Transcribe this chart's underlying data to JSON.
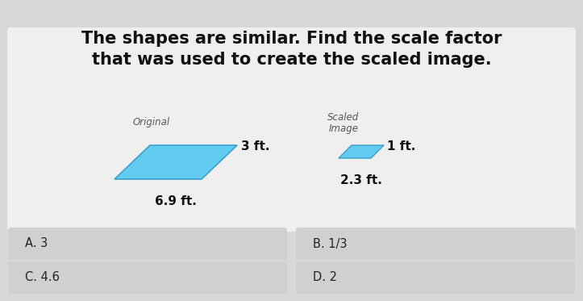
{
  "title_line1": "The shapes are similar. Find the scale factor",
  "title_line2": "that was used to create the scaled image.",
  "bg_main": "#d8d8d8",
  "bg_card": "#efefef",
  "bg_button": "#d0d0d0",
  "shape_color": "#62cbf0",
  "shape_edge_color": "#3a9fcc",
  "original_label": "Original",
  "original_side": "3 ft.",
  "original_bottom": "6.9 ft.",
  "scaled_label_line1": "Scaled",
  "scaled_label_line2": "Image",
  "scaled_side": "1 ft.",
  "scaled_bottom": "2.3 ft.",
  "options": [
    "A. 3",
    "B. 1/3",
    "C. 4.6",
    "D. 2"
  ],
  "title_fontsize": 15,
  "label_fontsize": 8.5,
  "dim_fontsize": 11,
  "option_fontsize": 10.5
}
